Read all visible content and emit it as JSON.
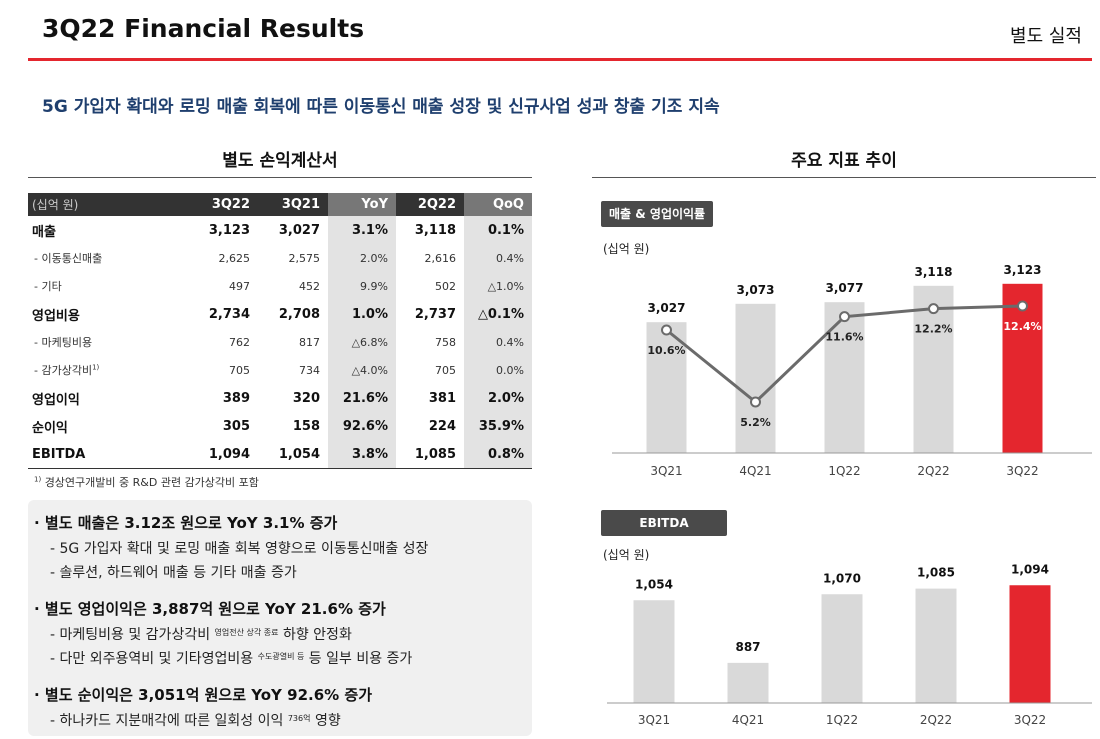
{
  "header": {
    "title": "3Q22 Financial Results",
    "section_label": "별도 실적"
  },
  "headline": "5G 가입자 확대와 로밍 매출 회복에 따른 이동통신 매출 성장 및 신규사업 성과 창출 기조 지속",
  "table": {
    "title": "별도 손익계산서",
    "unit": "(십억 원)",
    "columns": [
      "3Q22",
      "3Q21",
      "YoY",
      "2Q22",
      "QoQ"
    ],
    "rows": [
      {
        "label": "매출",
        "sup": "",
        "values": [
          "3,123",
          "3,027",
          "3.1%",
          "3,118",
          "0.1%"
        ]
      },
      {
        "label": "- 이동통신매출",
        "sup": "",
        "values": [
          "2,625",
          "2,575",
          "2.0%",
          "2,616",
          "0.4%"
        ]
      },
      {
        "label": "- 기타",
        "sup": "",
        "values": [
          "497",
          "452",
          "9.9%",
          "502",
          "△1.0%"
        ]
      },
      {
        "label": "영업비용",
        "sup": "",
        "values": [
          "2,734",
          "2,708",
          "1.0%",
          "2,737",
          "△0.1%"
        ]
      },
      {
        "label": "- 마케팅비용",
        "sup": "",
        "values": [
          "762",
          "817",
          "△6.8%",
          "758",
          "0.4%"
        ]
      },
      {
        "label": "- 감가상각비",
        "sup": "1)",
        "values": [
          "705",
          "734",
          "△4.0%",
          "705",
          "0.0%"
        ]
      },
      {
        "label": "영업이익",
        "sup": "",
        "values": [
          "389",
          "320",
          "21.6%",
          "381",
          "2.0%"
        ]
      },
      {
        "label": "순이익",
        "sup": "",
        "values": [
          "305",
          "158",
          "92.6%",
          "224",
          "35.9%"
        ]
      },
      {
        "label": "EBITDA",
        "sup": "",
        "values": [
          "1,094",
          "1,054",
          "3.8%",
          "1,085",
          "0.8%"
        ]
      }
    ],
    "footnote_mark": "1)",
    "footnote": "경상연구개발비 중 R&D 관련 감가상각비 포함"
  },
  "bullets": {
    "b1": {
      "head": "· 별도 매출은 3.12조 원으로 YoY 3.1% 증가",
      "s1": "- 5G 가입자 확대 및 로밍 매출 회복 영향으로 이동통신매출 성장",
      "s2": "- 솔루션, 하드웨어 매출 등 기타 매출 증가"
    },
    "b2": {
      "head": "· 별도 영업이익은 3,887억 원으로 YoY 21.6% 증가",
      "s1a": "- 마케팅비용 및 감가상각비",
      "s1b": "영업전산 상각 종료",
      "s1c": "하향 안정화",
      "s2a": "- 다만 외주용역비 및 기타영업비용",
      "s2b": "수도광열비 등",
      "s2c": "등 일부 비용 증가"
    },
    "b3": {
      "head": "· 별도 순이익은 3,051억 원으로 YoY 92.6% 증가",
      "s1a": "- 하나카드 지분매각에 따른 일회성 이익",
      "s1b": "736억",
      "s1c": "영향"
    }
  },
  "charts_section_title": "주요 지표 추이",
  "colors": {
    "accent": "#e4262e",
    "bar": "#d9d9d9",
    "line": "#6b6b6b"
  },
  "chart_data": [
    {
      "type": "bar",
      "title": "매출 & 영업이익률",
      "ylabel": "(십억 원)",
      "categories": [
        "3Q21",
        "4Q21",
        "1Q22",
        "2Q22",
        "3Q22"
      ],
      "series": [
        {
          "values": [
            3027,
            3073,
            3077,
            3118,
            3123
          ],
          "labels": [
            "3,027",
            "3,073",
            "3,077",
            "3,118",
            "3,123"
          ]
        },
        {
          "type": "line",
          "values": [
            10.6,
            5.2,
            11.6,
            12.2,
            12.4
          ],
          "labels": [
            "10.6%",
            "5.2%",
            "11.6%",
            "12.2%",
            "12.4%"
          ]
        }
      ],
      "highlight_last": true
    },
    {
      "type": "bar",
      "title": "EBITDA",
      "ylabel": "(십억 원)",
      "categories": [
        "3Q21",
        "4Q21",
        "1Q22",
        "2Q22",
        "3Q22"
      ],
      "series": [
        {
          "values": [
            1054,
            887,
            1070,
            1085,
            1094
          ],
          "labels": [
            "1,054",
            "887",
            "1,070",
            "1,085",
            "1,094"
          ]
        }
      ],
      "highlight_last": true
    }
  ]
}
